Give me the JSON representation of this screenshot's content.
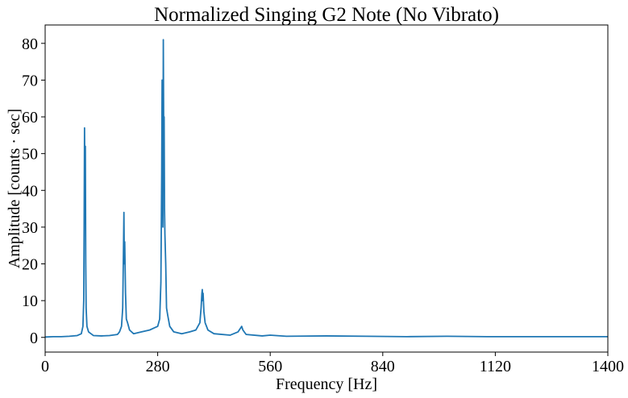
{
  "chart_data": {
    "type": "line",
    "title": "Normalized Singing G2 Note (No Vibrato)",
    "x_label": "Frequency [Hz]",
    "y_label": "Amplitude [counts · sec]",
    "xlim": [
      0,
      1400
    ],
    "ylim": [
      -4,
      85
    ],
    "xticks": [
      0,
      280,
      560,
      840,
      1120,
      1400
    ],
    "yticks": [
      0,
      10,
      20,
      30,
      40,
      50,
      60,
      70,
      80
    ],
    "series": [
      {
        "color": "#1f77b4",
        "x": [
          0,
          20,
          40,
          60,
          80,
          90,
          94,
          96,
          97,
          98,
          99,
          100,
          101,
          102,
          104,
          108,
          120,
          140,
          160,
          180,
          185,
          190,
          193,
          195,
          196,
          197,
          198,
          200,
          202,
          205,
          210,
          220,
          240,
          260,
          270,
          280,
          285,
          288,
          290,
          291,
          292,
          293,
          294,
          295,
          296,
          297,
          298,
          300,
          302,
          305,
          310,
          320,
          340,
          360,
          375,
          385,
          388,
          390,
          391,
          392,
          393,
          395,
          398,
          405,
          420,
          460,
          480,
          486,
          489,
          492,
          500,
          540,
          560,
          600,
          700,
          800,
          900,
          1000,
          1100,
          1200,
          1300,
          1400
        ],
        "values": [
          0.1,
          0.2,
          0.2,
          0.3,
          0.5,
          1,
          3,
          10,
          30,
          57,
          40,
          52,
          20,
          8,
          3,
          1.5,
          0.5,
          0.4,
          0.5,
          0.8,
          1.5,
          3,
          8,
          25,
          34,
          20,
          26,
          12,
          5,
          4,
          2,
          1,
          1.5,
          2,
          2.5,
          3,
          5,
          15,
          45,
          70,
          50,
          30,
          81,
          55,
          60,
          35,
          28,
          20,
          8,
          6,
          3,
          1.5,
          1,
          1.5,
          2,
          4,
          8,
          12,
          13,
          10,
          12,
          7,
          4,
          2,
          1,
          0.6,
          1.5,
          2.5,
          3,
          2,
          0.8,
          0.4,
          0.6,
          0.3,
          0.4,
          0.3,
          0.2,
          0.3,
          0.2,
          0.2,
          0.2,
          0.2
        ]
      }
    ]
  }
}
